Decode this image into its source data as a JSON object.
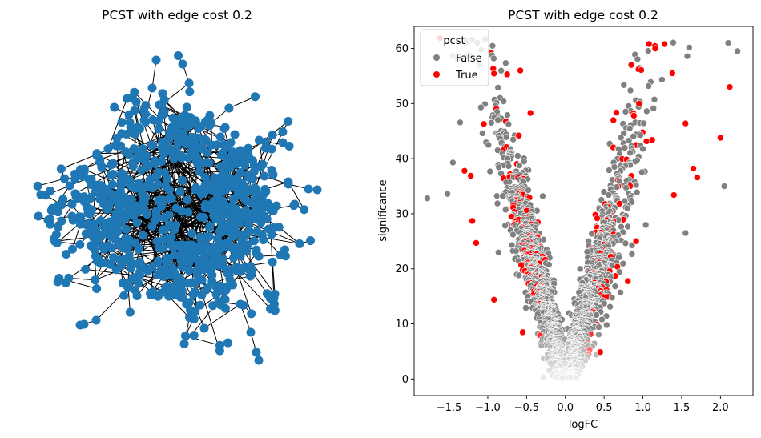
{
  "chart_data": [
    {
      "type": "network",
      "title": "PCST with edge cost 0.2",
      "node_color": "#1f77b4",
      "edge_color": "#000000",
      "approx_node_count": 600,
      "axes_visible": false
    },
    {
      "type": "scatter",
      "title": "PCST with edge cost 0.2",
      "xlabel": "logFC",
      "ylabel": "significance",
      "xlim": [
        -1.95,
        2.42
      ],
      "ylim": [
        -3.0,
        64.0
      ],
      "xticks": [
        -1.5,
        -1.0,
        -0.5,
        0.0,
        0.5,
        1.0,
        1.5,
        2.0
      ],
      "xtick_labels": [
        "−1.5",
        "−1.0",
        "−0.5",
        "0.0",
        "0.5",
        "1.0",
        "1.5",
        "2.0"
      ],
      "yticks": [
        0,
        10,
        20,
        30,
        40,
        50,
        60
      ],
      "ytick_labels": [
        "0",
        "10",
        "20",
        "30",
        "40",
        "50",
        "60"
      ],
      "legend": {
        "title": "pcst",
        "placement": "top-left",
        "entries": [
          {
            "label": "False",
            "color": "#808080"
          },
          {
            "label": "True",
            "color": "#ff0000"
          }
        ]
      },
      "series_note": "Volcano plot; points lie on a V-shaped envelope with low-significance points shading toward white near logFC 0.",
      "highlight_points": [
        {
          "x": -1.78,
          "y": 32.8,
          "pcst": "False"
        },
        {
          "x": -1.52,
          "y": 33.6,
          "pcst": "False"
        },
        {
          "x": -1.45,
          "y": 39.3,
          "pcst": "False"
        },
        {
          "x": -1.3,
          "y": 37.8,
          "pcst": "True"
        },
        {
          "x": -1.22,
          "y": 36.9,
          "pcst": "True"
        },
        {
          "x": -1.2,
          "y": 28.7,
          "pcst": "True"
        },
        {
          "x": -1.15,
          "y": 24.7,
          "pcst": "True"
        },
        {
          "x": -1.05,
          "y": 46.3,
          "pcst": "True"
        },
        {
          "x": -0.92,
          "y": 14.4,
          "pcst": "True"
        },
        {
          "x": -0.75,
          "y": 55.3,
          "pcst": "True"
        },
        {
          "x": -0.58,
          "y": 56.0,
          "pcst": "True"
        },
        {
          "x": -0.55,
          "y": 8.5,
          "pcst": "True"
        },
        {
          "x": -0.45,
          "y": 48.3,
          "pcst": "True"
        },
        {
          "x": 0.45,
          "y": 4.9,
          "pcst": "True"
        },
        {
          "x": 0.62,
          "y": 47.0,
          "pcst": "True"
        },
        {
          "x": 0.85,
          "y": 57.0,
          "pcst": "True"
        },
        {
          "x": 0.95,
          "y": 50.0,
          "pcst": "True"
        },
        {
          "x": 1.12,
          "y": 43.4,
          "pcst": "True"
        },
        {
          "x": 1.28,
          "y": 60.8,
          "pcst": "True"
        },
        {
          "x": 1.38,
          "y": 55.5,
          "pcst": "True"
        },
        {
          "x": 1.4,
          "y": 33.4,
          "pcst": "True"
        },
        {
          "x": 1.55,
          "y": 46.4,
          "pcst": "True"
        },
        {
          "x": 1.65,
          "y": 38.2,
          "pcst": "True"
        },
        {
          "x": 1.7,
          "y": 36.6,
          "pcst": "True"
        },
        {
          "x": 2.0,
          "y": 43.8,
          "pcst": "True"
        },
        {
          "x": 2.12,
          "y": 53.0,
          "pcst": "True"
        },
        {
          "x": 2.1,
          "y": 61.0,
          "pcst": "False"
        },
        {
          "x": 2.22,
          "y": 59.5,
          "pcst": "False"
        },
        {
          "x": 2.05,
          "y": 35.0,
          "pcst": "False"
        },
        {
          "x": 1.55,
          "y": 26.5,
          "pcst": "False"
        }
      ]
    }
  ]
}
